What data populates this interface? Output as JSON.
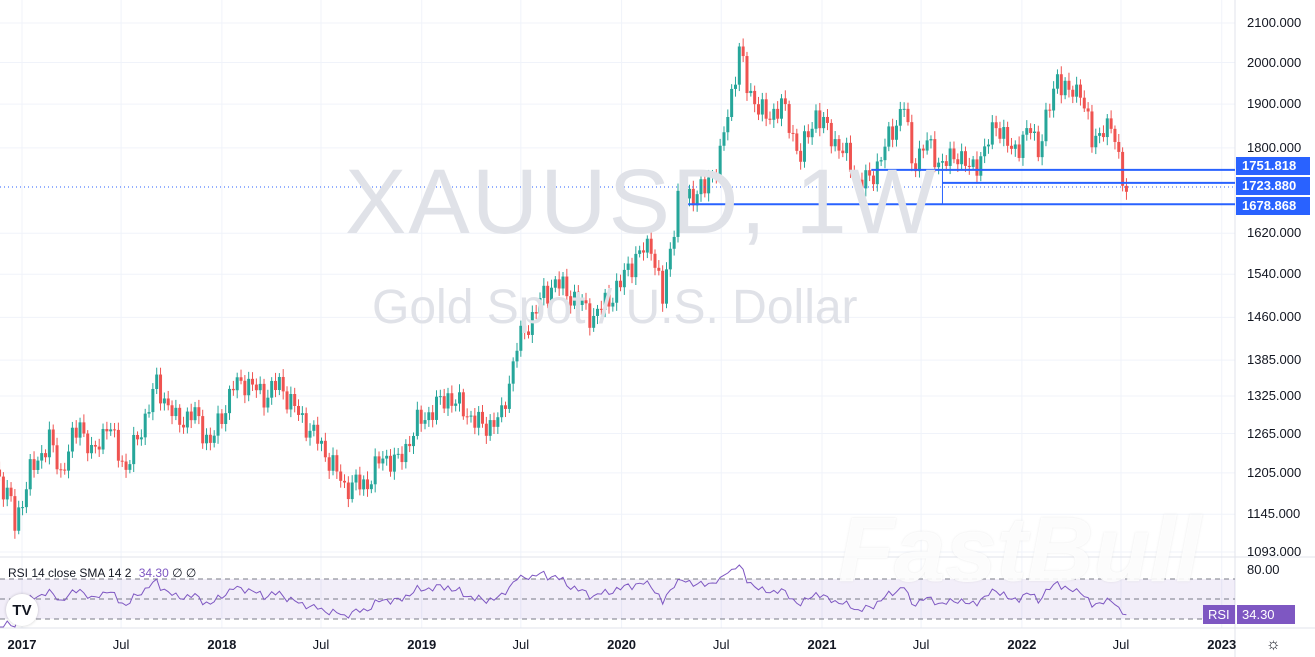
{
  "chart_data": {
    "type": "candlestick",
    "symbol_watermark": "XAUUSD, 1W",
    "description_watermark": "Gold Spot / U.S. Dollar",
    "scale": "log",
    "ylim": [
      1093,
      2100
    ],
    "grid": true,
    "price_ticks": [
      "2100.000",
      "2000.000",
      "1900.000",
      "1800.000",
      "1620.000",
      "1540.000",
      "1460.000",
      "1385.000",
      "1325.000",
      "1265.000",
      "1205.000",
      "1145.000",
      "1093.000"
    ],
    "time_ticks": [
      {
        "label": "2017",
        "date": "2017-01-01",
        "year": true
      },
      {
        "label": "Jul",
        "date": "2017-07-01",
        "year": false
      },
      {
        "label": "2018",
        "date": "2018-01-01",
        "year": true
      },
      {
        "label": "Jul",
        "date": "2018-07-01",
        "year": false
      },
      {
        "label": "2019",
        "date": "2019-01-01",
        "year": true
      },
      {
        "label": "Jul",
        "date": "2019-07-01",
        "year": false
      },
      {
        "label": "2020",
        "date": "2020-01-01",
        "year": true
      },
      {
        "label": "Jul",
        "date": "2020-07-01",
        "year": false
      },
      {
        "label": "2021",
        "date": "2021-01-01",
        "year": true
      },
      {
        "label": "Jul",
        "date": "2021-07-01",
        "year": false
      },
      {
        "label": "2022",
        "date": "2022-01-01",
        "year": true
      },
      {
        "label": "Jul",
        "date": "2022-07-01",
        "year": false
      },
      {
        "label": "2023",
        "date": "2023-01-01",
        "year": true
      }
    ],
    "approx_weekly_close_path": [
      [
        "2016-11-14",
        1210
      ],
      [
        "2016-12-12",
        1160
      ],
      [
        "2016-12-19",
        1130
      ],
      [
        "2017-01-16",
        1205
      ],
      [
        "2017-02-20",
        1255
      ],
      [
        "2017-03-13",
        1205
      ],
      [
        "2017-04-17",
        1285
      ],
      [
        "2017-05-08",
        1228
      ],
      [
        "2017-06-05",
        1280
      ],
      [
        "2017-07-10",
        1210
      ],
      [
        "2017-08-14",
        1290
      ],
      [
        "2017-09-04",
        1345
      ],
      [
        "2017-10-09",
        1285
      ],
      [
        "2017-11-13",
        1295
      ],
      [
        "2017-12-11",
        1248
      ],
      [
        "2018-01-22",
        1340
      ],
      [
        "2018-02-12",
        1350
      ],
      [
        "2018-03-19",
        1325
      ],
      [
        "2018-04-16",
        1345
      ],
      [
        "2018-05-21",
        1295
      ],
      [
        "2018-06-25",
        1255
      ],
      [
        "2018-08-13",
        1185
      ],
      [
        "2018-09-24",
        1190
      ],
      [
        "2018-10-22",
        1230
      ],
      [
        "2018-11-19",
        1220
      ],
      [
        "2018-12-24",
        1280
      ],
      [
        "2019-02-18",
        1325
      ],
      [
        "2019-04-22",
        1275
      ],
      [
        "2019-05-27",
        1290
      ],
      [
        "2019-06-24",
        1410
      ],
      [
        "2019-08-12",
        1500
      ],
      [
        "2019-09-02",
        1525
      ],
      [
        "2019-10-07",
        1495
      ],
      [
        "2019-11-11",
        1460
      ],
      [
        "2019-12-30",
        1520
      ],
      [
        "2020-01-13",
        1555
      ],
      [
        "2020-02-24",
        1600
      ],
      [
        "2020-03-16",
        1490
      ],
      [
        "2020-04-13",
        1690
      ],
      [
        "2020-06-01",
        1710
      ],
      [
        "2020-06-29",
        1780
      ],
      [
        "2020-07-27",
        1975
      ],
      [
        "2020-08-03",
        2035
      ],
      [
        "2020-08-17",
        1940
      ],
      [
        "2020-09-21",
        1865
      ],
      [
        "2020-10-19",
        1900
      ],
      [
        "2020-11-23",
        1780
      ],
      [
        "2020-12-21",
        1880
      ],
      [
        "2021-01-04",
        1850
      ],
      [
        "2021-02-15",
        1780
      ],
      [
        "2021-03-08",
        1725
      ],
      [
        "2021-03-29",
        1730
      ],
      [
        "2021-04-19",
        1780
      ],
      [
        "2021-05-31",
        1900
      ],
      [
        "2021-06-14",
        1765
      ],
      [
        "2021-07-12",
        1810
      ],
      [
        "2021-08-09",
        1760
      ],
      [
        "2021-09-06",
        1790
      ],
      [
        "2021-09-27",
        1750
      ],
      [
        "2021-10-25",
        1790
      ],
      [
        "2021-11-15",
        1860
      ],
      [
        "2021-12-13",
        1790
      ],
      [
        "2022-01-17",
        1840
      ],
      [
        "2022-01-31",
        1800
      ],
      [
        "2022-02-21",
        1890
      ],
      [
        "2022-03-07",
        1970
      ],
      [
        "2022-03-28",
        1920
      ],
      [
        "2022-04-18",
        1940
      ],
      [
        "2022-05-09",
        1810
      ],
      [
        "2022-05-30",
        1850
      ],
      [
        "2022-06-20",
        1825
      ],
      [
        "2022-07-04",
        1740
      ],
      [
        "2022-07-11",
        1705
      ]
    ],
    "horizontal_levels": [
      {
        "price": 1751.818,
        "label": "1751.818",
        "from": "2021-04-01"
      },
      {
        "price": 1723.88,
        "label": "1723.880",
        "from": "2021-08-09"
      },
      {
        "price": 1678.868,
        "label": "1678.868",
        "from": "2020-05-01"
      }
    ],
    "vertical_marker_date": "2021-08-09",
    "current_price_line": 1715,
    "colors": {
      "up": "#26a69a",
      "down": "#ef5350",
      "levels": "#2962ff",
      "rsi": "#7e57c2",
      "grid": "#f0f3fa"
    }
  },
  "rsi_pane": {
    "legend_name": "RSI 14 close SMA 14 2",
    "legend_value": "34.30",
    "legend_extra": "∅ ∅",
    "axis_tick": "80.00",
    "badge_label": "RSI",
    "badge_value": "34.30",
    "levels": [
      70,
      50,
      30
    ],
    "last_value": 34.3
  },
  "watermark_brand": "FastBull",
  "logo": "TV",
  "settings_icon": "gear-icon"
}
